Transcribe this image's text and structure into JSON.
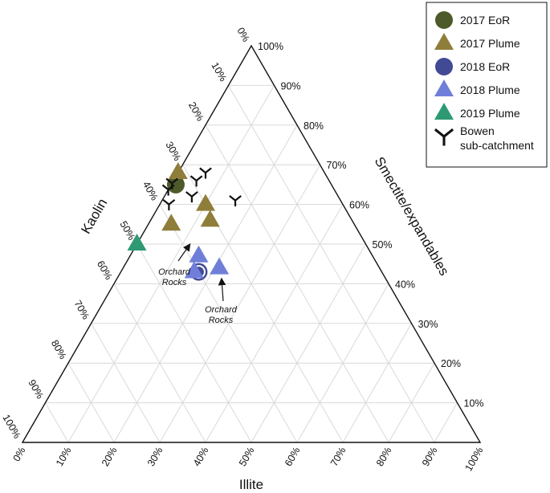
{
  "chart_data": {
    "type": "scatter",
    "subtype": "ternary",
    "axes": {
      "left": {
        "label": "Kaolin"
      },
      "right": {
        "label": "Smectite/expandables"
      },
      "bottom": {
        "label": "Illite"
      }
    },
    "ticks": {
      "left": [
        "0%",
        "10%",
        "20%",
        "30%",
        "40%",
        "50%",
        "60%",
        "70%",
        "80%",
        "90%",
        "100%"
      ],
      "right": [
        "10%",
        "20%",
        "30%",
        "40%",
        "50%",
        "60%",
        "70%",
        "80%",
        "90%",
        "100%"
      ],
      "bottom": [
        "0%",
        "10%",
        "20%",
        "30%",
        "40%",
        "50%",
        "60%",
        "70%",
        "80%",
        "90%",
        "100%"
      ]
    },
    "grid": true,
    "legend_position": "top-right",
    "series": [
      {
        "name": "2017 EoR",
        "marker": "circle",
        "color": "#4d5a2a",
        "points": [
          {
            "kaolin": 34,
            "smectite": 65,
            "illite": 1
          }
        ]
      },
      {
        "name": "2017 Plume",
        "marker": "triangle",
        "color": "#8f7e3a",
        "points": [
          {
            "kaolin": 32,
            "smectite": 68,
            "illite": 0
          },
          {
            "kaolin": 30,
            "smectite": 60,
            "illite": 10
          },
          {
            "kaolin": 31,
            "smectite": 56,
            "illite": 13
          },
          {
            "kaolin": 40,
            "smectite": 55,
            "illite": 5
          }
        ]
      },
      {
        "name": "2018 EoR",
        "marker": "circle",
        "color": "#424a96",
        "points": [
          {
            "kaolin": 40,
            "smectite": 43,
            "illite": 17
          }
        ]
      },
      {
        "name": "2018 Plume",
        "marker": "triangle",
        "color": "#6f7fd9",
        "points": [
          {
            "kaolin": 38,
            "smectite": 47,
            "illite": 15
          },
          {
            "kaolin": 35,
            "smectite": 44,
            "illite": 21
          },
          {
            "kaolin": 41,
            "smectite": 43,
            "illite": 16
          }
        ]
      },
      {
        "name": "2019 Plume",
        "marker": "triangle",
        "color": "#2e9a73",
        "points": [
          {
            "kaolin": 50,
            "smectite": 50,
            "illite": 0
          }
        ]
      },
      {
        "name": "Bowen sub-catchment",
        "marker": "y-mark",
        "color": "#111111",
        "points": [
          {
            "kaolin": 29,
            "smectite": 66,
            "illite": 5
          },
          {
            "kaolin": 26,
            "smectite": 68,
            "illite": 6
          },
          {
            "kaolin": 37,
            "smectite": 65,
            "illite": 0
          },
          {
            "kaolin": 35,
            "smectite": 66,
            "illite": 0
          },
          {
            "kaolin": 38,
            "smectite": 60,
            "illite": 2
          },
          {
            "kaolin": 32,
            "smectite": 62,
            "illite": 6
          },
          {
            "kaolin": 23,
            "smectite": 61,
            "illite": 16
          }
        ]
      }
    ],
    "annotations": [
      {
        "text_lines": [
          "Orchard",
          "Rocks"
        ],
        "target_series": "2019 Plume"
      },
      {
        "text_lines": [
          "Orchard",
          "Rocks"
        ],
        "target_series": "2018 EoR"
      }
    ]
  },
  "legend": {
    "items": [
      {
        "label": "2017 EoR",
        "marker": "circle",
        "color": "#4d5a2a"
      },
      {
        "label": "2017 Plume",
        "marker": "triangle",
        "color": "#8f7e3a"
      },
      {
        "label": "2018 EoR",
        "marker": "circle",
        "color": "#424a96"
      },
      {
        "label": "2018 Plume",
        "marker": "triangle",
        "color": "#6f7fd9"
      },
      {
        "label": "2019 Plume",
        "marker": "triangle",
        "color": "#2e9a73"
      },
      {
        "label_lines": [
          "Bowen",
          "sub-catchment"
        ],
        "marker": "y-mark",
        "color": "#111111"
      }
    ]
  }
}
